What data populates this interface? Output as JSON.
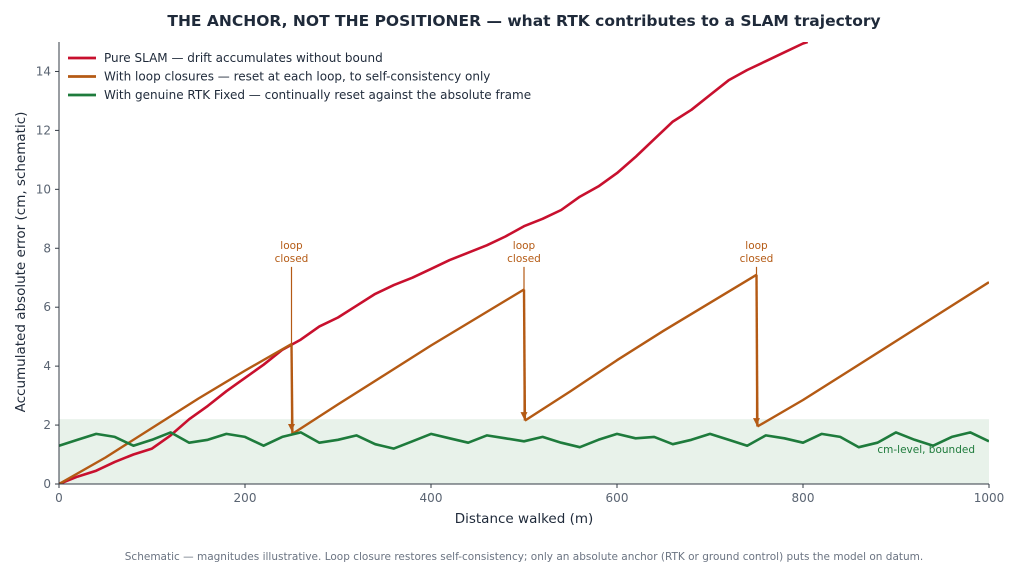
{
  "chart_data": {
    "type": "line",
    "title": "THE ANCHOR, NOT THE POSITIONER — what RTK contributes to a SLAM trajectory",
    "xlabel": "Distance walked (m)",
    "ylabel": "Accumulated absolute error (cm, schematic)",
    "xlim": [
      0,
      1000
    ],
    "ylim": [
      0,
      15
    ],
    "xticks": [
      0,
      200,
      400,
      600,
      800,
      1000
    ],
    "yticks": [
      0,
      2,
      4,
      6,
      8,
      10,
      12,
      14
    ],
    "grid": false,
    "legend_position": "top-left",
    "series": [
      {
        "name": "Pure SLAM — drift accumulates without bound",
        "color": "#c8102e",
        "x": [
          0,
          20,
          40,
          60,
          80,
          100,
          120,
          140,
          160,
          180,
          200,
          220,
          240,
          260,
          280,
          300,
          320,
          340,
          360,
          380,
          400,
          420,
          440,
          460,
          480,
          500,
          520,
          540,
          560,
          580,
          600,
          620,
          640,
          660,
          680,
          700,
          720,
          740,
          760,
          780,
          800,
          805
        ],
        "y": [
          0,
          0.25,
          0.45,
          0.75,
          1.0,
          1.2,
          1.65,
          2.2,
          2.65,
          3.15,
          3.6,
          4.05,
          4.55,
          4.9,
          5.35,
          5.65,
          6.05,
          6.45,
          6.75,
          7.0,
          7.3,
          7.6,
          7.85,
          8.1,
          8.4,
          8.75,
          9.0,
          9.3,
          9.75,
          10.1,
          10.55,
          11.1,
          11.7,
          12.3,
          12.7,
          13.2,
          13.7,
          14.05,
          14.35,
          14.65,
          14.95,
          15.0
        ]
      },
      {
        "name": "With loop closures — reset at each loop, to self-consistency only",
        "color": "#b45a14",
        "segments": [
          {
            "x": [
              0,
              50,
              100,
              150,
              200,
              250
            ],
            "y": [
              0,
              0.9,
              1.9,
              2.9,
              3.85,
              4.75
            ]
          },
          {
            "x": [
              250,
              251
            ],
            "y": [
              4.75,
              1.7
            ]
          },
          {
            "x": [
              251,
              300,
              350,
              400,
              450,
              500
            ],
            "y": [
              1.7,
              2.7,
              3.7,
              4.7,
              5.65,
              6.6
            ]
          },
          {
            "x": [
              500,
              501
            ],
            "y": [
              6.6,
              2.15
            ]
          },
          {
            "x": [
              501,
              550,
              600,
              650,
              700,
              750
            ],
            "y": [
              2.15,
              3.15,
              4.2,
              5.2,
              6.15,
              7.1
            ]
          },
          {
            "x": [
              750,
              751
            ],
            "y": [
              7.1,
              1.95
            ]
          },
          {
            "x": [
              751,
              800,
              850,
              900,
              950,
              1000
            ],
            "y": [
              1.95,
              2.85,
              3.85,
              4.85,
              5.85,
              6.85
            ]
          }
        ]
      },
      {
        "name": "With genuine RTK Fixed — continually reset against the absolute frame",
        "color": "#1e7b3c",
        "x": [
          0,
          20,
          40,
          60,
          80,
          100,
          120,
          140,
          160,
          180,
          200,
          220,
          240,
          260,
          280,
          300,
          320,
          340,
          360,
          380,
          400,
          420,
          440,
          460,
          480,
          500,
          520,
          540,
          560,
          580,
          600,
          620,
          640,
          660,
          680,
          700,
          720,
          740,
          760,
          780,
          800,
          820,
          840,
          860,
          880,
          900,
          920,
          940,
          960,
          980,
          1000
        ],
        "y": [
          1.3,
          1.5,
          1.7,
          1.6,
          1.3,
          1.5,
          1.75,
          1.4,
          1.5,
          1.7,
          1.6,
          1.3,
          1.6,
          1.75,
          1.4,
          1.5,
          1.65,
          1.35,
          1.2,
          1.45,
          1.7,
          1.55,
          1.4,
          1.65,
          1.55,
          1.45,
          1.6,
          1.4,
          1.25,
          1.5,
          1.7,
          1.55,
          1.6,
          1.35,
          1.5,
          1.7,
          1.5,
          1.3,
          1.65,
          1.55,
          1.4,
          1.7,
          1.6,
          1.25,
          1.4,
          1.75,
          1.5,
          1.3,
          1.6,
          1.75,
          1.45
        ]
      }
    ],
    "band": {
      "y0": 0,
      "y1": 2.2,
      "label": "cm-level, bounded",
      "color": "#e8f2ea"
    },
    "annotations": [
      {
        "text_line1": "loop",
        "text_line2": "closed",
        "x": 250,
        "y_from": 7.3,
        "y_to": 1.8
      },
      {
        "text_line1": "loop",
        "text_line2": "closed",
        "x": 500,
        "y_from": 7.3,
        "y_to": 2.2
      },
      {
        "text_line1": "loop",
        "text_line2": "closed",
        "x": 750,
        "y_from": 7.3,
        "y_to": 2.0
      }
    ],
    "footnote": "Schematic — magnitudes illustrative. Loop closure restores self-consistency; only an absolute anchor (RTK or ground control) puts the model on datum."
  }
}
